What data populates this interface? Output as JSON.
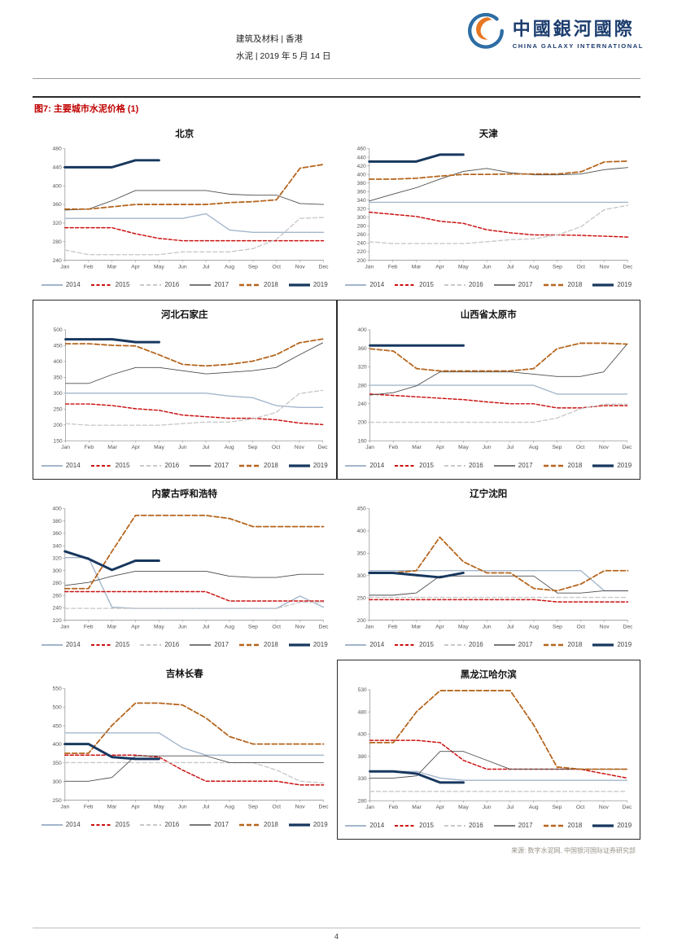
{
  "page": {
    "header": {
      "sector_line": "建筑及材料 | 香港",
      "doc_line": "水泥 | 2019 年 5 月 14 日",
      "brand_cn": "中國銀河國際",
      "brand_en": "CHINA GALAXY INTERNATIONAL"
    },
    "figure_title": "图7: 主要城市水泥价格 (1)",
    "source_note": "来源: 数字水泥网, 中国银河国际证券研究部",
    "page_number": "4"
  },
  "months": [
    "Jan",
    "Feb",
    "Mar",
    "Apr",
    "May",
    "Jun",
    "Jul",
    "Aug",
    "Sep",
    "Oct",
    "Nov",
    "Dec"
  ],
  "series_styles": {
    "2014": {
      "color": "#a3b6cc",
      "dash": "",
      "width": 1.4
    },
    "2015": {
      "color": "#cc1111",
      "dash": "4,2.5",
      "width": 1.5
    },
    "2016": {
      "color": "#c9c9c9",
      "dash": "5,3",
      "width": 1.4
    },
    "2017": {
      "color": "#4d4d4d",
      "dash": "",
      "width": 0.9
    },
    "2018": {
      "color": "#b5651d",
      "dash": "6,3",
      "width": 1.8
    },
    "2019": {
      "color": "#17375e",
      "dash": "",
      "width": 3
    }
  },
  "chart_data": [
    {
      "type": "line",
      "title": "北京",
      "xlabel": "",
      "ylabel": "",
      "ylim": [
        240,
        480
      ],
      "ystep": 40,
      "bordered": false,
      "legend_position": "bottom",
      "series": [
        {
          "name": "2014",
          "values": [
            330,
            330,
            330,
            330,
            330,
            330,
            340,
            305,
            300,
            300,
            300,
            300
          ]
        },
        {
          "name": "2015",
          "values": [
            310,
            310,
            310,
            297,
            287,
            282,
            282,
            282,
            282,
            282,
            282,
            282
          ]
        },
        {
          "name": "2016",
          "values": [
            262,
            252,
            252,
            252,
            252,
            258,
            258,
            258,
            265,
            285,
            330,
            332
          ]
        },
        {
          "name": "2017",
          "values": [
            348,
            350,
            368,
            390,
            390,
            390,
            390,
            382,
            380,
            380,
            362,
            360
          ]
        },
        {
          "name": "2018",
          "values": [
            350,
            350,
            355,
            360,
            360,
            360,
            360,
            364,
            366,
            370,
            438,
            446
          ]
        },
        {
          "name": "2019",
          "values": [
            440,
            440,
            440,
            455,
            455
          ]
        }
      ]
    },
    {
      "type": "line",
      "title": "天津",
      "xlabel": "",
      "ylabel": "",
      "ylim": [
        200,
        460
      ],
      "ystep": 20,
      "bordered": false,
      "legend_position": "bottom",
      "series": [
        {
          "name": "2014",
          "values": [
            335,
            335,
            335,
            335,
            335,
            335,
            335,
            335,
            335,
            335,
            335,
            335
          ]
        },
        {
          "name": "2015",
          "values": [
            312,
            307,
            302,
            291,
            286,
            271,
            264,
            259,
            259,
            258,
            256,
            254
          ]
        },
        {
          "name": "2016",
          "values": [
            243,
            239,
            239,
            239,
            239,
            243,
            248,
            250,
            259,
            278,
            318,
            328
          ]
        },
        {
          "name": "2017",
          "values": [
            338,
            354,
            369,
            389,
            407,
            414,
            404,
            399,
            399,
            401,
            411,
            416
          ]
        },
        {
          "name": "2018",
          "values": [
            389,
            389,
            391,
            396,
            400,
            400,
            401,
            401,
            401,
            406,
            429,
            431
          ]
        },
        {
          "name": "2019",
          "values": [
            430,
            430,
            430,
            446,
            446
          ]
        }
      ]
    },
    {
      "type": "line",
      "title": "河北石家庄",
      "xlabel": "",
      "ylabel": "",
      "ylim": [
        150,
        500
      ],
      "ystep": 50,
      "bordered": true,
      "legend_position": "bottom",
      "series": [
        {
          "name": "2014",
          "values": [
            300,
            300,
            300,
            300,
            300,
            300,
            300,
            291,
            286,
            261,
            255,
            255
          ]
        },
        {
          "name": "2015",
          "values": [
            266,
            266,
            261,
            251,
            246,
            231,
            226,
            221,
            221,
            216,
            206,
            201
          ]
        },
        {
          "name": "2016",
          "values": [
            204,
            199,
            199,
            199,
            199,
            204,
            209,
            209,
            219,
            239,
            299,
            309
          ]
        },
        {
          "name": "2017",
          "values": [
            331,
            331,
            359,
            381,
            381,
            371,
            361,
            366,
            371,
            381,
            421,
            459
          ]
        },
        {
          "name": "2018",
          "values": [
            456,
            456,
            451,
            449,
            421,
            391,
            386,
            391,
            401,
            421,
            459,
            471
          ]
        },
        {
          "name": "2019",
          "values": [
            470,
            470,
            470,
            461,
            461
          ]
        }
      ]
    },
    {
      "type": "line",
      "title": "山西省太原市",
      "xlabel": "",
      "ylabel": "",
      "ylim": [
        160,
        400
      ],
      "ystep": 40,
      "bordered": true,
      "legend_position": "bottom",
      "series": [
        {
          "name": "2014",
          "values": [
            280,
            280,
            280,
            280,
            280,
            280,
            280,
            280,
            261,
            261,
            261,
            261
          ]
        },
        {
          "name": "2015",
          "values": [
            261,
            258,
            255,
            252,
            249,
            244,
            240,
            240,
            231,
            231,
            236,
            236
          ]
        },
        {
          "name": "2016",
          "values": [
            200,
            200,
            200,
            200,
            200,
            200,
            200,
            200,
            209,
            229,
            239,
            239
          ]
        },
        {
          "name": "2017",
          "values": [
            259,
            264,
            279,
            309,
            309,
            309,
            309,
            304,
            299,
            299,
            309,
            369
          ]
        },
        {
          "name": "2018",
          "values": [
            359,
            354,
            316,
            311,
            311,
            311,
            311,
            316,
            359,
            371,
            371,
            369
          ]
        },
        {
          "name": "2019",
          "values": [
            366,
            366,
            366,
            366,
            366
          ]
        }
      ]
    },
    {
      "type": "line",
      "title": "内蒙古呼和浩特",
      "xlabel": "",
      "ylabel": "",
      "ylim": [
        220,
        400
      ],
      "ystep": 20,
      "bordered": false,
      "legend_position": "bottom",
      "series": [
        {
          "name": "2014",
          "values": [
            321,
            321,
            241,
            239,
            239,
            239,
            239,
            239,
            239,
            239,
            259,
            241
          ]
        },
        {
          "name": "2015",
          "values": [
            266,
            266,
            266,
            266,
            266,
            266,
            266,
            251,
            251,
            251,
            251,
            251
          ]
        },
        {
          "name": "2016",
          "values": [
            239,
            239,
            239,
            239,
            239,
            239,
            239,
            239,
            239,
            239,
            249,
            249
          ]
        },
        {
          "name": "2017",
          "values": [
            276,
            281,
            291,
            299,
            299,
            299,
            299,
            291,
            289,
            289,
            294,
            294
          ]
        },
        {
          "name": "2018",
          "values": [
            271,
            271,
            331,
            389,
            389,
            389,
            389,
            384,
            371,
            371,
            371,
            371
          ]
        },
        {
          "name": "2019",
          "values": [
            331,
            319,
            301,
            316,
            316
          ]
        }
      ]
    },
    {
      "type": "line",
      "title": "辽宁沈阳",
      "xlabel": "",
      "ylabel": "",
      "ylim": [
        200,
        450
      ],
      "ystep": 50,
      "bordered": false,
      "legend_position": "bottom",
      "series": [
        {
          "name": "2014",
          "values": [
            311,
            311,
            311,
            311,
            311,
            311,
            311,
            311,
            311,
            311,
            266,
            266
          ]
        },
        {
          "name": "2015",
          "values": [
            246,
            246,
            246,
            246,
            246,
            246,
            246,
            246,
            241,
            241,
            241,
            241
          ]
        },
        {
          "name": "2016",
          "values": [
            251,
            251,
            251,
            251,
            251,
            251,
            251,
            251,
            251,
            251,
            251,
            251
          ]
        },
        {
          "name": "2017",
          "values": [
            256,
            256,
            261,
            299,
            299,
            299,
            299,
            299,
            261,
            261,
            266,
            266
          ]
        },
        {
          "name": "2018",
          "values": [
            306,
            306,
            311,
            386,
            331,
            306,
            306,
            271,
            266,
            281,
            311,
            311
          ]
        },
        {
          "name": "2019",
          "values": [
            306,
            306,
            301,
            296,
            306
          ]
        }
      ]
    },
    {
      "type": "line",
      "title": "吉林长春",
      "xlabel": "",
      "ylabel": "",
      "ylim": [
        250,
        550
      ],
      "ystep": 50,
      "bordered": false,
      "legend_position": "bottom",
      "series": [
        {
          "name": "2014",
          "values": [
            431,
            431,
            431,
            431,
            431,
            391,
            371,
            371,
            371,
            371,
            371,
            371
          ]
        },
        {
          "name": "2015",
          "values": [
            371,
            371,
            371,
            371,
            366,
            331,
            301,
            301,
            301,
            301,
            291,
            291
          ]
        },
        {
          "name": "2016",
          "values": [
            351,
            351,
            351,
            351,
            351,
            351,
            351,
            351,
            351,
            331,
            301,
            296
          ]
        },
        {
          "name": "2017",
          "values": [
            301,
            301,
            311,
            369,
            369,
            369,
            369,
            351,
            351,
            351,
            351,
            351
          ]
        },
        {
          "name": "2018",
          "values": [
            376,
            376,
            451,
            511,
            511,
            506,
            471,
            421,
            401,
            401,
            401,
            401
          ]
        },
        {
          "name": "2019",
          "values": [
            401,
            401,
            366,
            361,
            361
          ]
        }
      ]
    },
    {
      "type": "line",
      "title": "黑龙江哈尔滨",
      "xlabel": "",
      "ylabel": "",
      "ylim": [
        280,
        530
      ],
      "ystep": 50,
      "bordered": true,
      "legend_position": "bottom",
      "series": [
        {
          "name": "2014",
          "values": [
            346,
            346,
            346,
            331,
            326,
            326,
            326,
            326,
            326,
            326,
            326,
            326
          ]
        },
        {
          "name": "2015",
          "values": [
            416,
            416,
            416,
            411,
            371,
            351,
            351,
            351,
            351,
            351,
            341,
            331
          ]
        },
        {
          "name": "2016",
          "values": [
            301,
            301,
            301,
            301,
            301,
            301,
            301,
            301,
            301,
            301,
            301,
            301
          ]
        },
        {
          "name": "2017",
          "values": [
            331,
            331,
            336,
            391,
            391,
            371,
            351,
            351,
            351,
            351,
            351,
            351
          ]
        },
        {
          "name": "2018",
          "values": [
            411,
            411,
            481,
            528,
            528,
            528,
            528,
            451,
            356,
            351,
            351,
            351
          ]
        },
        {
          "name": "2019",
          "values": [
            346,
            346,
            341,
            321,
            321
          ]
        }
      ]
    }
  ]
}
